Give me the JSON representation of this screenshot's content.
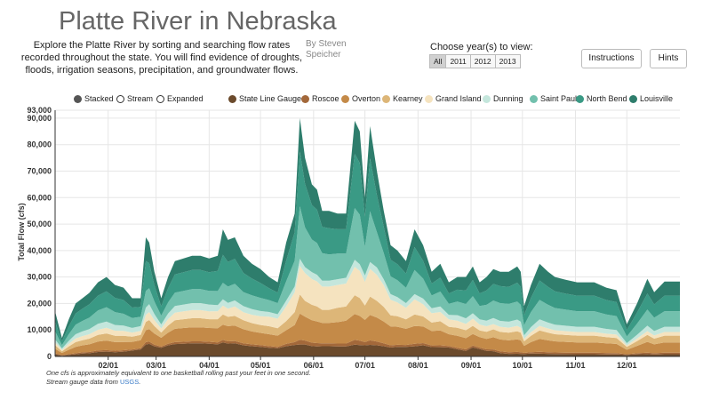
{
  "header": {
    "title": "Platte River in Nebraska",
    "intro": "Explore the Platte River by sorting and searching flow rates recorded throughout the state. You will find evidence of droughts, floods, irrigation seasons, precipitation, and groundwater flows.",
    "author": "By Steven Speicher",
    "years_label": "Choose year(s) to view:",
    "years": [
      "All",
      "2011",
      "2012",
      "2013"
    ],
    "selected_year": "All",
    "instructions_label": "Instructions",
    "hints_label": "Hints"
  },
  "view_options": [
    "Stacked",
    "Stream",
    "Expanded"
  ],
  "selected_view": "Stacked",
  "note": {
    "line1": "One cfs is approximately equivalent to one basketball rolling past your feet in one second.",
    "line2_prefix": "Stream gauge data from",
    "link": "USGS",
    "line2_suffix": "."
  },
  "chart_data": {
    "type": "area",
    "stacked": true,
    "ylabel": "Total Flow (cfs)",
    "xlabel": "",
    "ylim": [
      0,
      93000
    ],
    "y_ticks": [
      "93,000",
      "90,000",
      "80,000",
      "70,000",
      "60,000",
      "50,000",
      "40,000",
      "30,000",
      "20,000",
      "10,000",
      "0"
    ],
    "y_tick_values": [
      93000,
      90000,
      80000,
      70000,
      60000,
      50000,
      40000,
      30000,
      20000,
      10000,
      0
    ],
    "x_ticks": [
      "02/01",
      "03/01",
      "04/01",
      "05/01",
      "06/01",
      "07/01",
      "08/01",
      "09/01",
      "10/01",
      "11/01",
      "12/01"
    ],
    "x_tick_days": [
      31,
      59,
      90,
      120,
      151,
      181,
      212,
      243,
      273,
      304,
      334
    ],
    "xlim_days": [
      0,
      365
    ],
    "grid": true,
    "legend_position": "top",
    "x_days": [
      0,
      4,
      8,
      12,
      16,
      20,
      25,
      30,
      35,
      40,
      45,
      50,
      53,
      55,
      58,
      62,
      66,
      70,
      75,
      80,
      85,
      90,
      95,
      98,
      101,
      105,
      110,
      115,
      120,
      125,
      130,
      135,
      140,
      143,
      146,
      150,
      153,
      156,
      160,
      165,
      170,
      175,
      178,
      181,
      184,
      188,
      192,
      196,
      200,
      205,
      210,
      215,
      220,
      225,
      230,
      235,
      240,
      244,
      248,
      252,
      256,
      260,
      265,
      270,
      272,
      274,
      278,
      283,
      288,
      292,
      298,
      305,
      315,
      322,
      328,
      334,
      340,
      346,
      350,
      356,
      365
    ],
    "total": [
      17000,
      7000,
      14000,
      20000,
      22000,
      24000,
      28000,
      30000,
      27000,
      26000,
      22000,
      22000,
      45000,
      43000,
      32000,
      22000,
      30000,
      36000,
      37000,
      38000,
      38000,
      37000,
      38000,
      48000,
      44000,
      45000,
      38000,
      35000,
      33000,
      30000,
      28000,
      43000,
      54000,
      90000,
      75000,
      65000,
      63000,
      55000,
      55000,
      54000,
      54000,
      89000,
      85000,
      60000,
      87000,
      70000,
      55000,
      42000,
      40000,
      36000,
      48000,
      42000,
      32000,
      35000,
      28000,
      30000,
      30000,
      34000,
      28000,
      30000,
      33000,
      32000,
      32000,
      34000,
      32000,
      19000,
      27000,
      35000,
      32000,
      30000,
      29000,
      28000,
      28000,
      26000,
      25000,
      12000,
      20000,
      29000,
      24000,
      28000,
      28000
    ],
    "series": [
      {
        "name": "State Line Gauge",
        "color": "#6b4a2c",
        "shares": [
          0.05,
          0.04,
          0.04,
          0.04,
          0.05,
          0.05,
          0.06,
          0.06,
          0.06,
          0.07,
          0.1,
          0.12,
          0.1,
          0.11,
          0.12,
          0.15,
          0.14,
          0.13,
          0.13,
          0.13,
          0.13,
          0.13,
          0.12,
          0.11,
          0.11,
          0.11,
          0.11,
          0.11,
          0.11,
          0.11,
          0.11,
          0.09,
          0.08,
          0.05,
          0.06,
          0.06,
          0.06,
          0.07,
          0.07,
          0.07,
          0.07,
          0.05,
          0.05,
          0.07,
          0.05,
          0.06,
          0.07,
          0.08,
          0.09,
          0.1,
          0.08,
          0.1,
          0.11,
          0.1,
          0.12,
          0.09,
          0.07,
          0.1,
          0.1,
          0.07,
          0.06,
          0.04,
          0.03,
          0.03,
          0.03,
          0.05,
          0.04,
          0.03,
          0.03,
          0.03,
          0.03,
          0.03,
          0.03,
          0.03,
          0.03,
          0.05,
          0.04,
          0.03,
          0.03,
          0.03,
          0.03
        ]
      },
      {
        "name": "Roscoe",
        "color": "#a3683a",
        "shares": [
          0.02,
          0.03,
          0.02,
          0.02,
          0.02,
          0.02,
          0.02,
          0.02,
          0.02,
          0.02,
          0.02,
          0.02,
          0.02,
          0.02,
          0.02,
          0.02,
          0.02,
          0.02,
          0.02,
          0.02,
          0.02,
          0.02,
          0.02,
          0.02,
          0.02,
          0.02,
          0.02,
          0.02,
          0.02,
          0.02,
          0.02,
          0.02,
          0.02,
          0.02,
          0.02,
          0.02,
          0.02,
          0.02,
          0.02,
          0.02,
          0.02,
          0.02,
          0.02,
          0.02,
          0.02,
          0.02,
          0.02,
          0.02,
          0.02,
          0.02,
          0.02,
          0.02,
          0.02,
          0.02,
          0.02,
          0.02,
          0.02,
          0.02,
          0.02,
          0.02,
          0.02,
          0.02,
          0.02,
          0.02,
          0.02,
          0.02,
          0.02,
          0.02,
          0.02,
          0.02,
          0.02,
          0.02,
          0.02,
          0.02,
          0.02,
          0.02,
          0.02,
          0.02,
          0.02,
          0.02,
          0.02
        ]
      },
      {
        "name": "Overton",
        "color": "#c48a48",
        "shares": [
          0.1,
          0.12,
          0.12,
          0.12,
          0.12,
          0.12,
          0.12,
          0.12,
          0.12,
          0.12,
          0.13,
          0.14,
          0.1,
          0.11,
          0.13,
          0.15,
          0.14,
          0.14,
          0.14,
          0.14,
          0.14,
          0.14,
          0.14,
          0.12,
          0.13,
          0.13,
          0.14,
          0.14,
          0.14,
          0.15,
          0.15,
          0.12,
          0.12,
          0.11,
          0.12,
          0.13,
          0.13,
          0.14,
          0.14,
          0.15,
          0.16,
          0.11,
          0.11,
          0.14,
          0.11,
          0.13,
          0.15,
          0.17,
          0.17,
          0.17,
          0.14,
          0.15,
          0.17,
          0.16,
          0.16,
          0.15,
          0.14,
          0.13,
          0.14,
          0.13,
          0.14,
          0.14,
          0.14,
          0.14,
          0.14,
          0.14,
          0.14,
          0.14,
          0.14,
          0.14,
          0.14,
          0.14,
          0.14,
          0.14,
          0.14,
          0.14,
          0.14,
          0.14,
          0.14,
          0.14,
          0.14
        ]
      },
      {
        "name": "Kearney",
        "color": "#ddb678",
        "shares": [
          0.08,
          0.09,
          0.09,
          0.09,
          0.09,
          0.09,
          0.09,
          0.09,
          0.09,
          0.09,
          0.09,
          0.09,
          0.07,
          0.08,
          0.09,
          0.09,
          0.09,
          0.09,
          0.09,
          0.09,
          0.09,
          0.09,
          0.09,
          0.08,
          0.08,
          0.08,
          0.09,
          0.09,
          0.09,
          0.1,
          0.1,
          0.08,
          0.09,
          0.08,
          0.08,
          0.09,
          0.09,
          0.09,
          0.09,
          0.1,
          0.1,
          0.08,
          0.08,
          0.09,
          0.08,
          0.09,
          0.1,
          0.1,
          0.1,
          0.1,
          0.09,
          0.09,
          0.1,
          0.1,
          0.1,
          0.1,
          0.1,
          0.09,
          0.09,
          0.09,
          0.09,
          0.09,
          0.09,
          0.09,
          0.09,
          0.09,
          0.09,
          0.09,
          0.09,
          0.09,
          0.09,
          0.09,
          0.09,
          0.09,
          0.09,
          0.09,
          0.09,
          0.09,
          0.09,
          0.09,
          0.09
        ]
      },
      {
        "name": "Grand Island",
        "color": "#f5e3bf",
        "shares": [
          0.06,
          0.07,
          0.07,
          0.07,
          0.07,
          0.07,
          0.07,
          0.07,
          0.07,
          0.07,
          0.07,
          0.07,
          0.06,
          0.07,
          0.07,
          0.07,
          0.08,
          0.08,
          0.08,
          0.08,
          0.08,
          0.08,
          0.08,
          0.07,
          0.07,
          0.08,
          0.08,
          0.09,
          0.1,
          0.12,
          0.13,
          0.13,
          0.14,
          0.12,
          0.14,
          0.15,
          0.15,
          0.16,
          0.16,
          0.16,
          0.16,
          0.12,
          0.12,
          0.15,
          0.12,
          0.14,
          0.15,
          0.14,
          0.13,
          0.12,
          0.12,
          0.11,
          0.11,
          0.1,
          0.1,
          0.09,
          0.08,
          0.08,
          0.08,
          0.07,
          0.06,
          0.06,
          0.06,
          0.06,
          0.06,
          0.05,
          0.05,
          0.05,
          0.05,
          0.05,
          0.05,
          0.05,
          0.05,
          0.05,
          0.05,
          0.05,
          0.05,
          0.05,
          0.05,
          0.05,
          0.05
        ]
      },
      {
        "name": "Dunning",
        "color": "#c4e6dc",
        "shares": [
          0.07,
          0.08,
          0.08,
          0.08,
          0.08,
          0.08,
          0.08,
          0.08,
          0.08,
          0.08,
          0.08,
          0.08,
          0.06,
          0.07,
          0.07,
          0.07,
          0.07,
          0.07,
          0.07,
          0.07,
          0.07,
          0.07,
          0.06,
          0.05,
          0.05,
          0.05,
          0.06,
          0.06,
          0.06,
          0.06,
          0.06,
          0.05,
          0.04,
          0.03,
          0.03,
          0.04,
          0.04,
          0.04,
          0.04,
          0.04,
          0.04,
          0.03,
          0.03,
          0.04,
          0.03,
          0.04,
          0.04,
          0.05,
          0.05,
          0.05,
          0.04,
          0.05,
          0.06,
          0.06,
          0.06,
          0.07,
          0.07,
          0.06,
          0.07,
          0.07,
          0.07,
          0.07,
          0.07,
          0.07,
          0.07,
          0.07,
          0.07,
          0.07,
          0.07,
          0.07,
          0.07,
          0.07,
          0.07,
          0.07,
          0.07,
          0.07,
          0.07,
          0.07,
          0.07,
          0.07,
          0.07
        ]
      },
      {
        "name": "Saint Paul",
        "color": "#72c0ad",
        "shares": [
          0.18,
          0.18,
          0.18,
          0.18,
          0.18,
          0.18,
          0.18,
          0.18,
          0.18,
          0.17,
          0.17,
          0.16,
          0.14,
          0.14,
          0.15,
          0.15,
          0.14,
          0.14,
          0.14,
          0.14,
          0.14,
          0.14,
          0.14,
          0.13,
          0.14,
          0.14,
          0.14,
          0.15,
          0.15,
          0.15,
          0.15,
          0.17,
          0.18,
          0.22,
          0.2,
          0.19,
          0.19,
          0.19,
          0.18,
          0.18,
          0.17,
          0.22,
          0.22,
          0.18,
          0.22,
          0.19,
          0.18,
          0.16,
          0.16,
          0.16,
          0.19,
          0.18,
          0.15,
          0.16,
          0.15,
          0.17,
          0.18,
          0.19,
          0.18,
          0.2,
          0.2,
          0.21,
          0.21,
          0.2,
          0.2,
          0.2,
          0.21,
          0.21,
          0.21,
          0.21,
          0.21,
          0.21,
          0.21,
          0.21,
          0.21,
          0.21,
          0.21,
          0.21,
          0.21,
          0.21,
          0.21
        ]
      },
      {
        "name": "North Bend",
        "color": "#3a9a85",
        "shares": [
          0.22,
          0.2,
          0.21,
          0.21,
          0.21,
          0.21,
          0.2,
          0.2,
          0.2,
          0.2,
          0.18,
          0.17,
          0.25,
          0.22,
          0.19,
          0.16,
          0.18,
          0.19,
          0.19,
          0.19,
          0.19,
          0.19,
          0.2,
          0.22,
          0.21,
          0.21,
          0.19,
          0.18,
          0.17,
          0.15,
          0.14,
          0.18,
          0.2,
          0.23,
          0.22,
          0.2,
          0.2,
          0.18,
          0.18,
          0.17,
          0.17,
          0.23,
          0.23,
          0.19,
          0.23,
          0.2,
          0.18,
          0.15,
          0.15,
          0.15,
          0.18,
          0.16,
          0.14,
          0.15,
          0.14,
          0.15,
          0.17,
          0.18,
          0.17,
          0.18,
          0.19,
          0.2,
          0.2,
          0.21,
          0.21,
          0.2,
          0.2,
          0.21,
          0.21,
          0.21,
          0.21,
          0.21,
          0.21,
          0.21,
          0.21,
          0.2,
          0.21,
          0.21,
          0.21,
          0.21,
          0.21
        ]
      },
      {
        "name": "Louisville",
        "color": "#2e7d6c",
        "shares": [
          0.22,
          0.19,
          0.19,
          0.19,
          0.18,
          0.18,
          0.18,
          0.18,
          0.18,
          0.18,
          0.16,
          0.15,
          0.2,
          0.18,
          0.16,
          0.14,
          0.14,
          0.14,
          0.14,
          0.14,
          0.14,
          0.14,
          0.15,
          0.2,
          0.19,
          0.18,
          0.17,
          0.16,
          0.16,
          0.14,
          0.14,
          0.16,
          0.13,
          0.14,
          0.13,
          0.12,
          0.12,
          0.11,
          0.12,
          0.11,
          0.11,
          0.14,
          0.14,
          0.12,
          0.14,
          0.13,
          0.11,
          0.13,
          0.13,
          0.13,
          0.14,
          0.14,
          0.14,
          0.15,
          0.15,
          0.16,
          0.17,
          0.15,
          0.15,
          0.17,
          0.17,
          0.17,
          0.18,
          0.18,
          0.18,
          0.18,
          0.18,
          0.18,
          0.18,
          0.18,
          0.18,
          0.18,
          0.18,
          0.18,
          0.18,
          0.18,
          0.17,
          0.19,
          0.19,
          0.19,
          0.19
        ]
      }
    ]
  }
}
